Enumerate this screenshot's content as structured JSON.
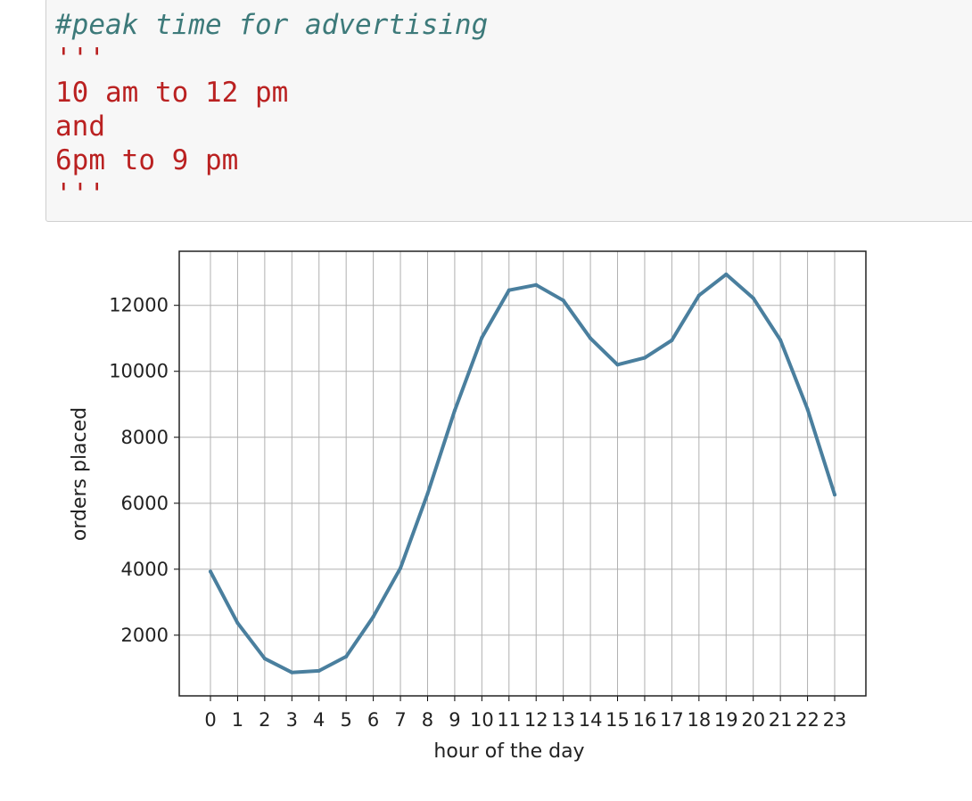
{
  "code_cell": {
    "lines": [
      {
        "text": "",
        "style": "plain"
      },
      {
        "text": "#peak time for advertising",
        "style": "comment"
      },
      {
        "text": "'''",
        "style": "string"
      },
      {
        "text": "10 am to 12 pm",
        "style": "string"
      },
      {
        "text": "and",
        "style": "string"
      },
      {
        "text": "6pm to 9 pm",
        "style": "string"
      },
      {
        "text": "'''",
        "style": "string"
      }
    ]
  },
  "colors": {
    "line": "#4a7f9e",
    "grid": "#b0b0b0",
    "code_background": "#f7f7f7",
    "comment": "#3d7a7a",
    "string": "#ba2121"
  },
  "chart_data": {
    "type": "line",
    "xlabel": "hour of the day",
    "ylabel": "orders placed",
    "x": [
      0,
      1,
      2,
      3,
      4,
      5,
      6,
      7,
      8,
      9,
      10,
      11,
      12,
      13,
      14,
      15,
      16,
      17,
      18,
      19,
      20,
      21,
      22,
      23
    ],
    "series": [
      {
        "values": [
          3930,
          2370,
          1290,
          870,
          920,
          1350,
          2560,
          4030,
          6290,
          8810,
          11020,
          12460,
          12620,
          12150,
          11000,
          10200,
          10410,
          10940,
          12300,
          12940,
          12220,
          10950,
          8850,
          6260
        ]
      }
    ],
    "xticks": [
      "0",
      "1",
      "2",
      "3",
      "4",
      "5",
      "6",
      "7",
      "8",
      "9",
      "10",
      "11",
      "12",
      "13",
      "14",
      "15",
      "16",
      "17",
      "18",
      "19",
      "20",
      "21",
      "22",
      "23"
    ],
    "yticks": [
      2000,
      4000,
      6000,
      8000,
      10000,
      12000
    ],
    "xlim": [
      -1.15,
      24.15
    ],
    "ylim": [
      160,
      13640
    ],
    "grid": true,
    "legend": "none"
  }
}
